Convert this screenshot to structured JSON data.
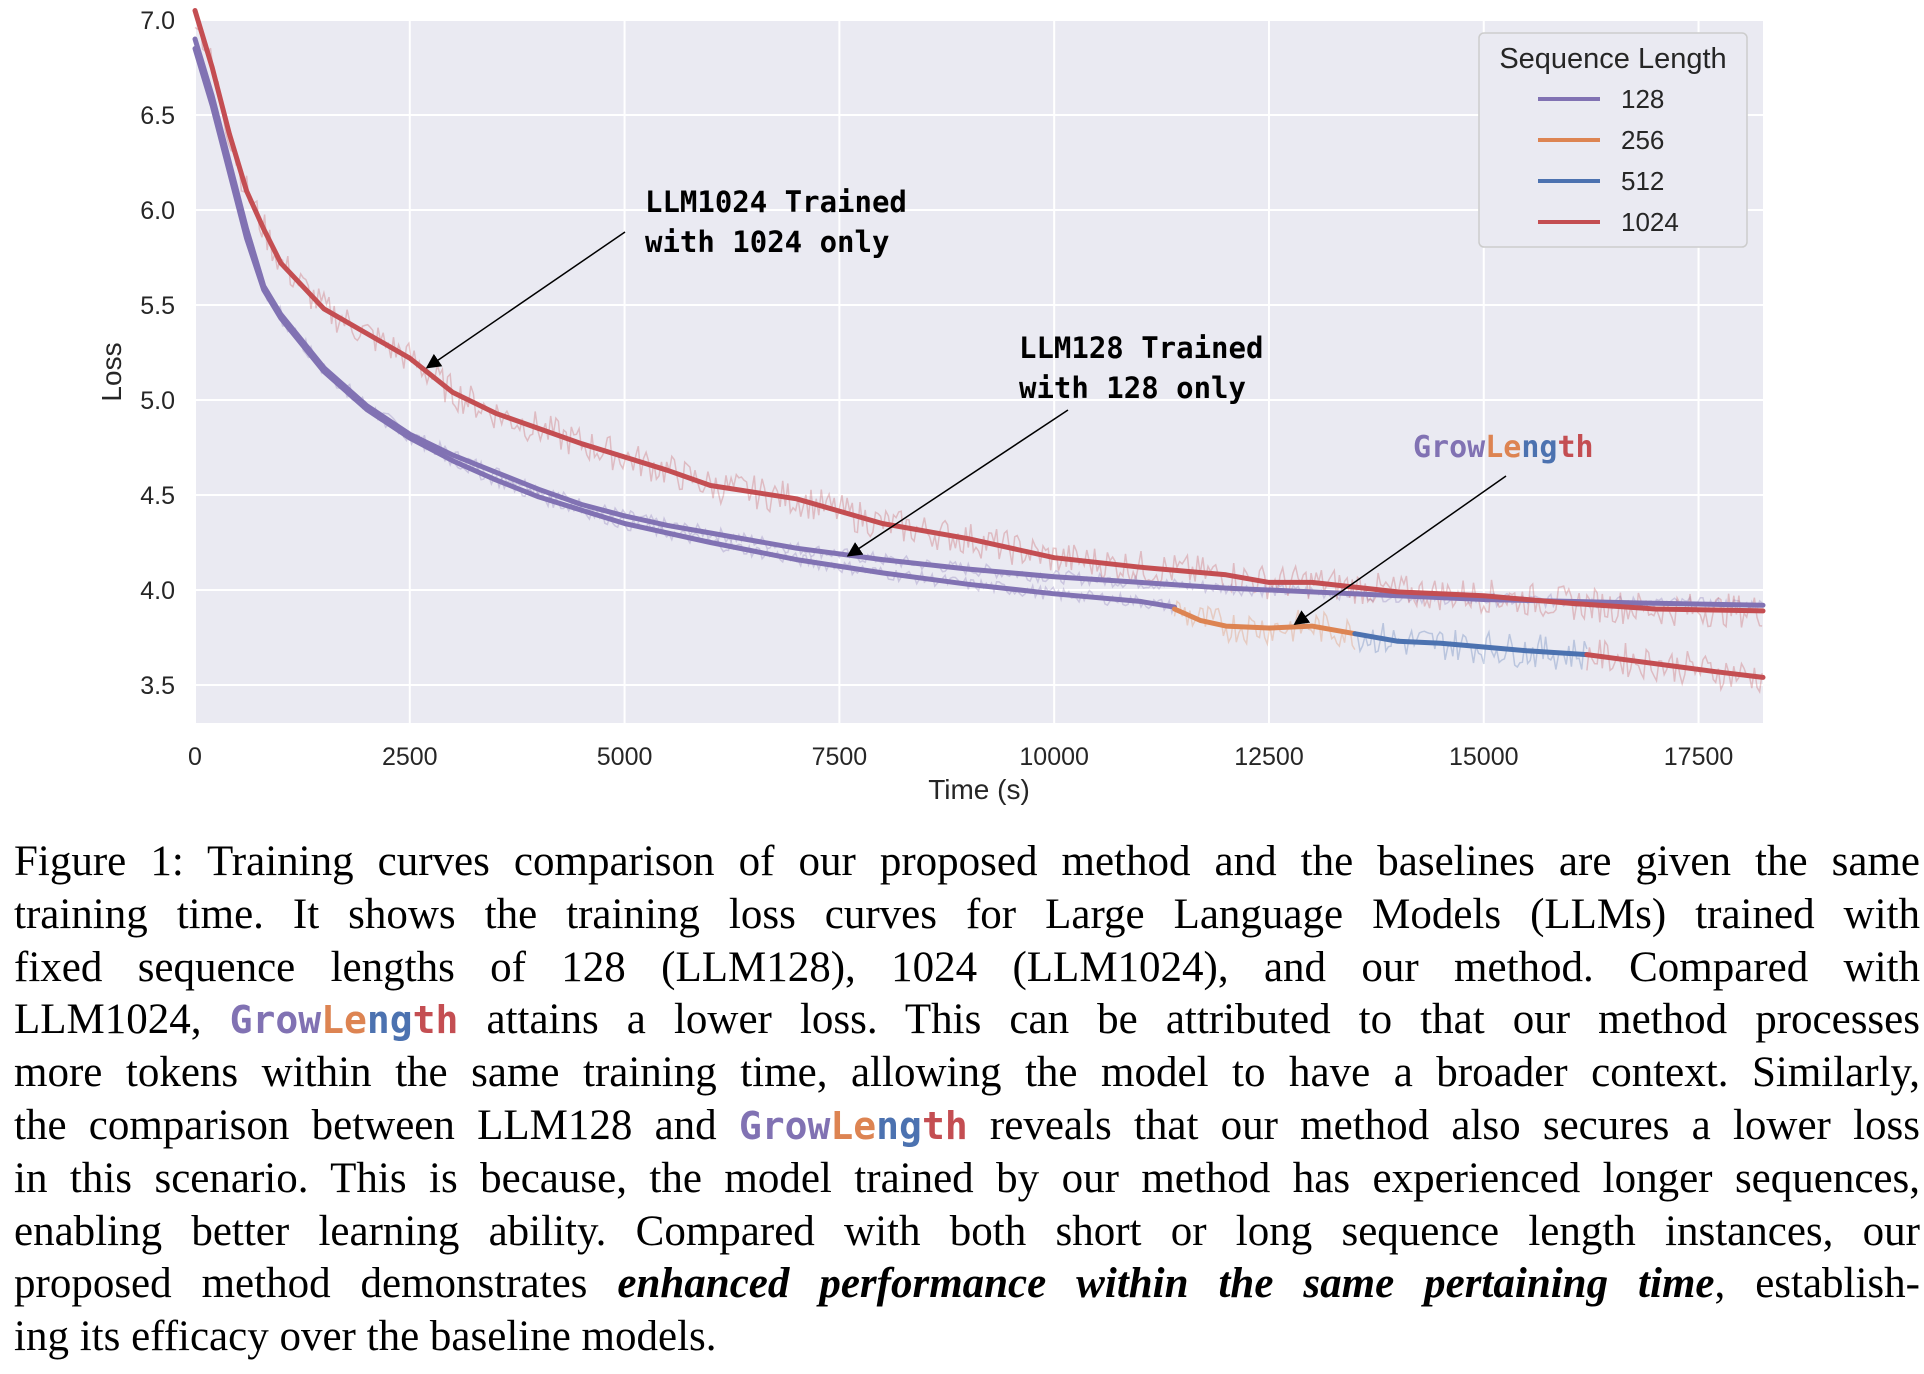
{
  "chart_data": {
    "type": "line",
    "xlabel": "Time (s)",
    "ylabel": "Loss",
    "xlim": [
      0,
      18250
    ],
    "ylim": [
      3.3,
      7.0
    ],
    "xticks": [
      "0",
      "2500",
      "5000",
      "7500",
      "10000",
      "12500",
      "15000",
      "17500"
    ],
    "yticks": [
      "3.5",
      "4.0",
      "4.5",
      "5.0",
      "5.5",
      "6.0",
      "6.5",
      "7.0"
    ],
    "grid": true,
    "legend": {
      "title": "Sequence Length",
      "placement": "top-right",
      "entries": [
        {
          "label": "128",
          "color": "#8172b3"
        },
        {
          "label": "256",
          "color": "#dd8452"
        },
        {
          "label": "512",
          "color": "#4c72b0"
        },
        {
          "label": "1024",
          "color": "#c44e52"
        }
      ]
    },
    "series": [
      {
        "id": "llm128",
        "seq_len": "128",
        "color": "#8172b3",
        "x": [
          0,
          200,
          400,
          600,
          800,
          1000,
          1500,
          2000,
          2500,
          3000,
          3500,
          4000,
          4500,
          5000,
          5500,
          6000,
          7000,
          8000,
          9000,
          10000,
          11000,
          12000,
          13000,
          14000,
          15000,
          16000,
          17000,
          18250
        ],
        "y": [
          6.9,
          6.6,
          6.25,
          5.9,
          5.6,
          5.45,
          5.17,
          4.97,
          4.82,
          4.71,
          4.62,
          4.53,
          4.45,
          4.39,
          4.34,
          4.3,
          4.22,
          4.16,
          4.11,
          4.07,
          4.04,
          4.01,
          3.99,
          3.97,
          3.95,
          3.94,
          3.93,
          3.92
        ]
      },
      {
        "id": "llm1024",
        "seq_len": "1024",
        "color": "#c44e52",
        "x": [
          0,
          200,
          400,
          600,
          800,
          1000,
          1500,
          2000,
          2500,
          3000,
          3500,
          4000,
          4500,
          5000,
          5500,
          6000,
          7000,
          8000,
          9000,
          10000,
          11000,
          12000,
          12500,
          13000,
          14000,
          15000,
          16000,
          17000,
          18250
        ],
        "y": [
          7.05,
          6.75,
          6.4,
          6.1,
          5.9,
          5.72,
          5.48,
          5.35,
          5.22,
          5.04,
          4.93,
          4.85,
          4.77,
          4.7,
          4.63,
          4.55,
          4.48,
          4.35,
          4.27,
          4.17,
          4.12,
          4.08,
          4.04,
          4.04,
          3.99,
          3.97,
          3.93,
          3.9,
          3.89
        ]
      },
      {
        "id": "growlength-128",
        "seq_len": "128",
        "color": "#8172b3",
        "x": [
          0,
          200,
          400,
          600,
          800,
          1000,
          1500,
          2000,
          2500,
          3000,
          3500,
          4000,
          4500,
          5000,
          5500,
          6000,
          7000,
          8000,
          9000,
          10000,
          11000,
          11400
        ],
        "y": [
          6.85,
          6.55,
          6.2,
          5.85,
          5.58,
          5.43,
          5.15,
          4.95,
          4.8,
          4.68,
          4.58,
          4.49,
          4.42,
          4.35,
          4.3,
          4.25,
          4.16,
          4.09,
          4.03,
          3.98,
          3.94,
          3.91
        ]
      },
      {
        "id": "growlength-256",
        "seq_len": "256",
        "color": "#dd8452",
        "x": [
          11400,
          11700,
          12000,
          12500,
          13000,
          13500
        ],
        "y": [
          3.9,
          3.84,
          3.81,
          3.8,
          3.81,
          3.77
        ]
      },
      {
        "id": "growlength-512",
        "seq_len": "512",
        "color": "#4c72b0",
        "x": [
          13500,
          14000,
          14500,
          15000,
          15500,
          16200
        ],
        "y": [
          3.77,
          3.73,
          3.72,
          3.7,
          3.68,
          3.66
        ]
      },
      {
        "id": "growlength-1024",
        "seq_len": "1024",
        "color": "#c44e52",
        "x": [
          16200,
          16700,
          17200,
          17700,
          18250
        ],
        "y": [
          3.66,
          3.63,
          3.6,
          3.57,
          3.54
        ]
      }
    ],
    "annotations": [
      {
        "id": "llm1024",
        "lines": [
          "LLM1024 Trained",
          "with 1024 only"
        ],
        "point_x": 2700,
        "point_y": 5.17
      },
      {
        "id": "llm128",
        "lines": [
          "LLM128 Trained",
          "with 128 only"
        ],
        "point_x": 7600,
        "point_y": 4.18
      },
      {
        "id": "growlength",
        "parts": [
          "Grow",
          "Le",
          "ng",
          "th"
        ],
        "point_x": 12800,
        "point_y": 3.82
      }
    ]
  },
  "caption": {
    "lines": [
      [
        {
          "t": "Figure 1: Training curves comparison of our proposed method and the baselines are given the same"
        }
      ],
      [
        {
          "t": "training time.  It shows the training loss curves for Large Language Models (LLMs) trained with"
        }
      ],
      [
        {
          "t": "fixed sequence lengths of 128 (LLM128), 1024 (LLM1024), and our method.  Compared with"
        }
      ],
      [
        {
          "t": "LLM1024, "
        },
        {
          "gl": true
        },
        {
          "t": " attains a lower loss.  This can be attributed to that our method processes"
        }
      ],
      [
        {
          "t": "more tokens within the same training time, allowing the model to have a broader context. Similarly,"
        }
      ],
      [
        {
          "t": "the comparison between LLM128 and "
        },
        {
          "gl": true
        },
        {
          "t": " reveals that our method also secures a lower loss"
        }
      ],
      [
        {
          "t": "in this scenario. This is because, the model trained by our method has experienced longer sequences,"
        }
      ],
      [
        {
          "t": "enabling better learning ability.  Compared with both short or long sequence length instances, our"
        }
      ],
      [
        {
          "t": "proposed method demonstrates "
        },
        {
          "em": "enhanced performance within the same pertaining time"
        },
        {
          "t": ", establish-"
        }
      ],
      [
        {
          "t": "ing its efficacy over the baseline models."
        }
      ]
    ]
  }
}
